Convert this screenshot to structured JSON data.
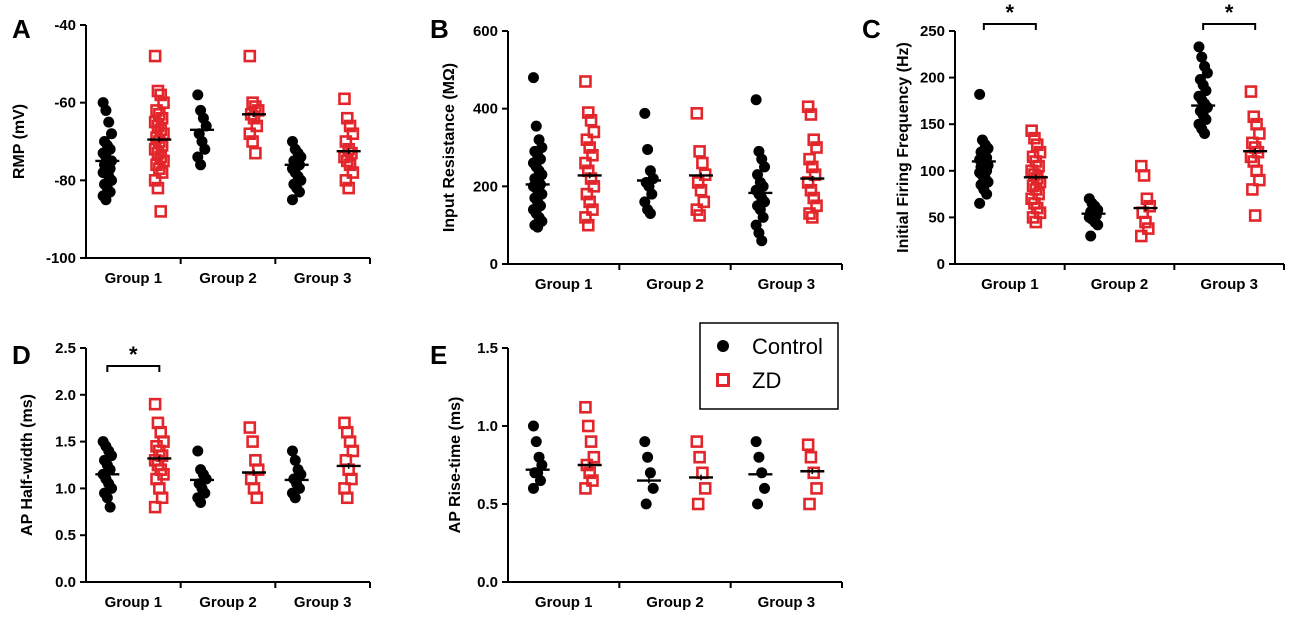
{
  "colors": {
    "control": "#000000",
    "zd": "#e3262b",
    "axis": "#000000"
  },
  "legend": {
    "entries": [
      {
        "name": "Control",
        "marker": "filled-circle"
      },
      {
        "name": "ZD",
        "marker": "open-square"
      }
    ]
  },
  "chart_data": [
    {
      "id": "A",
      "letter": "A",
      "type": "scatter",
      "ylabel": "RMP (mV)",
      "ylim": [
        -100,
        -40
      ],
      "yticks": [
        -40,
        -60,
        -80,
        -100
      ],
      "categories": [
        "Group 1",
        "Group 2",
        "Group 3"
      ],
      "series": [
        {
          "name": "Control",
          "points": [
            [
              -60,
              -62,
              -65,
              -68,
              -70,
              -71,
              -72,
              -73,
              -74,
              -75,
              -75,
              -76,
              -76,
              -77,
              -78,
              -78,
              -79,
              -80,
              -81,
              -82,
              -83,
              -84,
              -85
            ],
            [
              -58,
              -62,
              -64,
              -66,
              -68,
              -70,
              -72,
              -74,
              -76
            ],
            [
              -70,
              -72,
              -73,
              -74,
              -75,
              -76,
              -76,
              -77,
              -78,
              -79,
              -80,
              -81,
              -82,
              -83,
              -85
            ]
          ],
          "means": [
            -75,
            -67,
            -76
          ]
        },
        {
          "name": "ZD",
          "points": [
            [
              -48,
              -57,
              -58,
              -60,
              -62,
              -63,
              -64,
              -65,
              -66,
              -67,
              -68,
              -69,
              -70,
              -71,
              -72,
              -73,
              -74,
              -75,
              -76,
              -77,
              -78,
              -80,
              -82,
              -88
            ],
            [
              -48,
              -60,
              -61,
              -62,
              -63,
              -64,
              -66,
              -68,
              -70,
              -73
            ],
            [
              -59,
              -64,
              -66,
              -68,
              -70,
              -72,
              -73,
              -74,
              -75,
              -76,
              -78,
              -80,
              -82
            ]
          ],
          "means": [
            -69.5,
            -63,
            -72.5
          ]
        }
      ],
      "significance": []
    },
    {
      "id": "B",
      "letter": "B",
      "type": "scatter",
      "ylabel": "Input Resistance (MΩ)",
      "ylim": [
        0,
        600
      ],
      "yticks": [
        0,
        200,
        400,
        600
      ],
      "categories": [
        "Group 1",
        "Group 2",
        "Group 3"
      ],
      "series": [
        {
          "name": "Control",
          "points": [
            [
              480,
              355,
              320,
              300,
              290,
              280,
              270,
              260,
              250,
              240,
              230,
              220,
              210,
              205,
              200,
              195,
              190,
              180,
              170,
              160,
              150,
              140,
              130,
              120,
              110,
              100,
              95
            ],
            [
              388,
              295,
              240,
              220,
              210,
              200,
              180,
              160,
              140,
              130
            ],
            [
              423,
              290,
              270,
              250,
              230,
              210,
              200,
              190,
              180,
              170,
              160,
              150,
              140,
              120,
              100,
              80,
              60
            ]
          ],
          "means": [
            205,
            215,
            183
          ]
        },
        {
          "name": "ZD",
          "points": [
            [
              470,
              390,
              370,
              340,
              320,
              300,
              280,
              260,
              240,
              220,
              200,
              180,
              160,
              140,
              120,
              100
            ],
            [
              388,
              290,
              260,
              230,
              210,
              190,
              160,
              140,
              125
            ],
            [
              405,
              385,
              320,
              300,
              270,
              250,
              230,
              210,
              190,
              170,
              150,
              130,
              120
            ]
          ],
          "means": [
            228,
            228,
            220
          ]
        }
      ],
      "significance": []
    },
    {
      "id": "C",
      "letter": "C",
      "type": "scatter",
      "ylabel": "Initial Firing Frequency (Hz)",
      "ylim": [
        0,
        250
      ],
      "yticks": [
        0,
        50,
        100,
        150,
        200,
        250
      ],
      "categories": [
        "Group 1",
        "Group 2",
        "Group 3"
      ],
      "series": [
        {
          "name": "Control",
          "points": [
            [
              182,
              133,
              128,
              124,
              120,
              117,
              114,
              112,
              110,
              108,
              106,
              104,
              102,
              100,
              98,
              95,
              92,
              88,
              85,
              80,
              75,
              65
            ],
            [
              70,
              65,
              62,
              58,
              56,
              54,
              52,
              50,
              48,
              45,
              42,
              30
            ],
            [
              233,
              222,
              212,
              205,
              198,
              192,
              186,
              180,
              176,
              172,
              168,
              164,
              160,
              155,
              150,
              145,
              140
            ]
          ],
          "means": [
            110,
            54,
            170
          ]
        },
        {
          "name": "ZD",
          "points": [
            [
              143,
              135,
              128,
              120,
              115,
              110,
              105,
              100,
              96,
              92,
              88,
              84,
              80,
              75,
              70,
              65,
              60,
              55,
              50,
              45
            ],
            [
              105,
              95,
              70,
              62,
              55,
              45,
              38,
              30
            ],
            [
              185,
              158,
              150,
              140,
              130,
              125,
              120,
              115,
              110,
              100,
              90,
              80,
              52
            ]
          ],
          "means": [
            93,
            60,
            121
          ]
        }
      ],
      "significance": [
        {
          "group": 0,
          "label": "*"
        },
        {
          "group": 2,
          "label": "*"
        }
      ]
    },
    {
      "id": "D",
      "letter": "D",
      "type": "scatter",
      "ylabel": "AP Half-width (ms)",
      "ylim": [
        0,
        2.5
      ],
      "yticks": [
        "0.0",
        "0.5",
        "1.0",
        "1.5",
        "2.0",
        "2.5"
      ],
      "categories": [
        "Group 1",
        "Group 2",
        "Group 3"
      ],
      "series": [
        {
          "name": "Control",
          "points": [
            [
              1.5,
              1.45,
              1.4,
              1.35,
              1.3,
              1.25,
              1.2,
              1.15,
              1.1,
              1.05,
              1.0,
              0.95,
              0.9,
              0.8
            ],
            [
              1.4,
              1.2,
              1.15,
              1.1,
              1.05,
              1.0,
              0.95,
              0.9,
              0.85
            ],
            [
              1.4,
              1.3,
              1.2,
              1.15,
              1.1,
              1.05,
              1.0,
              0.95,
              0.9
            ]
          ],
          "means": [
            1.15,
            1.09,
            1.09
          ]
        },
        {
          "name": "ZD",
          "points": [
            [
              1.9,
              1.7,
              1.6,
              1.5,
              1.45,
              1.4,
              1.35,
              1.3,
              1.25,
              1.2,
              1.15,
              1.1,
              1.0,
              0.9,
              0.8
            ],
            [
              1.65,
              1.5,
              1.3,
              1.2,
              1.1,
              1.0,
              0.9
            ],
            [
              1.7,
              1.6,
              1.5,
              1.4,
              1.3,
              1.2,
              1.1,
              1.0,
              0.9
            ]
          ],
          "means": [
            1.32,
            1.17,
            1.24
          ]
        }
      ],
      "significance": [
        {
          "group": 0,
          "label": "*"
        }
      ]
    },
    {
      "id": "E",
      "letter": "E",
      "type": "scatter",
      "ylabel": "AP Rise-time (ms)",
      "ylim": [
        0,
        1.5
      ],
      "yticks": [
        "0.0",
        "0.5",
        "1.0",
        "1.5"
      ],
      "categories": [
        "Group 1",
        "Group 2",
        "Group 3"
      ],
      "series": [
        {
          "name": "Control",
          "points": [
            [
              1.0,
              0.9,
              0.8,
              0.75,
              0.7,
              0.7,
              0.65,
              0.6
            ],
            [
              0.9,
              0.8,
              0.7,
              0.6,
              0.5
            ],
            [
              0.9,
              0.8,
              0.7,
              0.6,
              0.5
            ]
          ],
          "means": [
            0.72,
            0.65,
            0.69
          ]
        },
        {
          "name": "ZD",
          "points": [
            [
              1.12,
              1.0,
              0.9,
              0.8,
              0.75,
              0.7,
              0.65,
              0.6
            ],
            [
              0.9,
              0.8,
              0.7,
              0.6,
              0.5
            ],
            [
              0.88,
              0.8,
              0.7,
              0.6,
              0.5
            ]
          ],
          "means": [
            0.75,
            0.67,
            0.71
          ]
        }
      ],
      "significance": []
    }
  ]
}
